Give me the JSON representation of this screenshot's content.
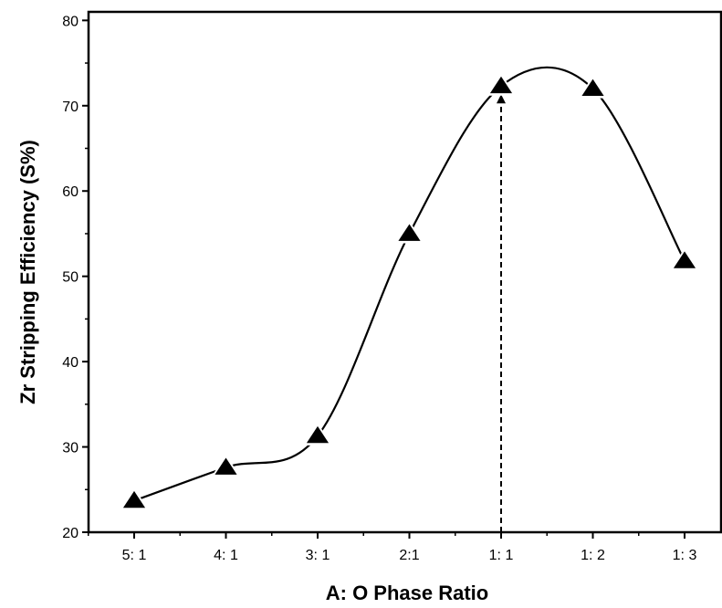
{
  "chart_data": {
    "type": "line",
    "xlabel": "A: O Phase Ratio",
    "ylabel": "Zr Stripping Efficiency (S%)",
    "categories": [
      "5: 1",
      "4: 1",
      "3: 1",
      "2:1",
      "1: 1",
      "1: 2",
      "1: 3"
    ],
    "series": [
      {
        "values": [
          23.7,
          27.6,
          31.3,
          55.0,
          72.3,
          72.0,
          51.8
        ],
        "marker": "triangle-up",
        "smooth": true,
        "color": "#000000"
      }
    ],
    "ylim": [
      20,
      81
    ],
    "yticks": [
      20,
      30,
      40,
      50,
      60,
      70,
      80
    ],
    "grid": false,
    "legend": "none",
    "annotations": [
      {
        "type": "dashed-arrow",
        "category": "1: 1",
        "from": 20,
        "to": 72.3
      }
    ]
  }
}
